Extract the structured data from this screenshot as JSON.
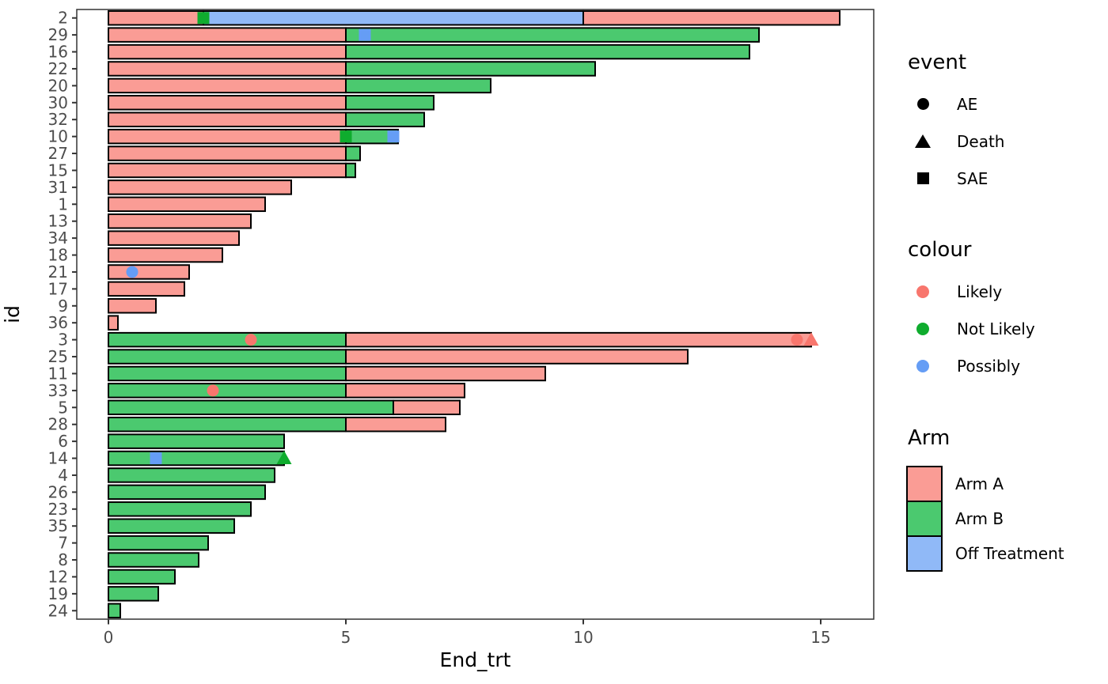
{
  "chart_data": {
    "type": "bar",
    "orientation": "horizontal",
    "xlabel": "End_trt",
    "ylabel": "id",
    "x_ticks": [
      0,
      5,
      10,
      15
    ],
    "xlim": [
      0,
      16.1
    ],
    "grid": false,
    "arm_colors": {
      "Arm A": "#FA9C95",
      "Arm B": "#4BC96F",
      "Off Treatment": "#90B9F7"
    },
    "event_colors": {
      "Likely": "#F8766D",
      "Not Likely": "#0FAC2E",
      "Possibly": "#659DF5"
    },
    "rows": [
      {
        "id": "2",
        "segments": [
          {
            "arm": "Arm A",
            "start": 0,
            "end": 2
          },
          {
            "arm": "Off Treatment",
            "start": 2,
            "end": 10
          },
          {
            "arm": "Arm A",
            "start": 10,
            "end": 15.4
          }
        ],
        "events": [
          {
            "type": "SAE",
            "colour": "Not Likely",
            "x": 2
          }
        ]
      },
      {
        "id": "29",
        "segments": [
          {
            "arm": "Arm A",
            "start": 0,
            "end": 5
          },
          {
            "arm": "Arm B",
            "start": 5,
            "end": 13.7
          }
        ],
        "events": [
          {
            "type": "SAE",
            "colour": "Possibly",
            "x": 5.4
          }
        ]
      },
      {
        "id": "16",
        "segments": [
          {
            "arm": "Arm A",
            "start": 0,
            "end": 5
          },
          {
            "arm": "Arm B",
            "start": 5,
            "end": 13.5
          }
        ],
        "events": []
      },
      {
        "id": "22",
        "segments": [
          {
            "arm": "Arm A",
            "start": 0,
            "end": 5
          },
          {
            "arm": "Arm B",
            "start": 5,
            "end": 10.25
          }
        ],
        "events": []
      },
      {
        "id": "20",
        "segments": [
          {
            "arm": "Arm A",
            "start": 0,
            "end": 5
          },
          {
            "arm": "Arm B",
            "start": 5,
            "end": 8.05
          }
        ],
        "events": []
      },
      {
        "id": "30",
        "segments": [
          {
            "arm": "Arm A",
            "start": 0,
            "end": 5
          },
          {
            "arm": "Arm B",
            "start": 5,
            "end": 6.85
          }
        ],
        "events": []
      },
      {
        "id": "32",
        "segments": [
          {
            "arm": "Arm A",
            "start": 0,
            "end": 5
          },
          {
            "arm": "Arm B",
            "start": 5,
            "end": 6.65
          }
        ],
        "events": []
      },
      {
        "id": "10",
        "segments": [
          {
            "arm": "Arm A",
            "start": 0,
            "end": 5
          },
          {
            "arm": "Arm B",
            "start": 5,
            "end": 6.1
          }
        ],
        "events": [
          {
            "type": "SAE",
            "colour": "Not Likely",
            "x": 5
          },
          {
            "type": "SAE",
            "colour": "Possibly",
            "x": 6
          }
        ]
      },
      {
        "id": "27",
        "segments": [
          {
            "arm": "Arm A",
            "start": 0,
            "end": 5
          },
          {
            "arm": "Arm B",
            "start": 5,
            "end": 5.3
          }
        ],
        "events": []
      },
      {
        "id": "15",
        "segments": [
          {
            "arm": "Arm A",
            "start": 0,
            "end": 5
          },
          {
            "arm": "Arm B",
            "start": 5,
            "end": 5.2
          }
        ],
        "events": []
      },
      {
        "id": "31",
        "segments": [
          {
            "arm": "Arm A",
            "start": 0,
            "end": 3.85
          }
        ],
        "events": []
      },
      {
        "id": "1",
        "segments": [
          {
            "arm": "Arm A",
            "start": 0,
            "end": 3.3
          }
        ],
        "events": []
      },
      {
        "id": "13",
        "segments": [
          {
            "arm": "Arm A",
            "start": 0,
            "end": 3
          }
        ],
        "events": []
      },
      {
        "id": "34",
        "segments": [
          {
            "arm": "Arm A",
            "start": 0,
            "end": 2.75
          }
        ],
        "events": []
      },
      {
        "id": "18",
        "segments": [
          {
            "arm": "Arm A",
            "start": 0,
            "end": 2.4
          }
        ],
        "events": []
      },
      {
        "id": "21",
        "segments": [
          {
            "arm": "Arm A",
            "start": 0,
            "end": 1.7
          }
        ],
        "events": [
          {
            "type": "AE",
            "colour": "Possibly",
            "x": 0.5
          }
        ]
      },
      {
        "id": "17",
        "segments": [
          {
            "arm": "Arm A",
            "start": 0,
            "end": 1.6
          }
        ],
        "events": []
      },
      {
        "id": "9",
        "segments": [
          {
            "arm": "Arm A",
            "start": 0,
            "end": 1
          }
        ],
        "events": []
      },
      {
        "id": "36",
        "segments": [
          {
            "arm": "Arm A",
            "start": 0,
            "end": 0.2
          }
        ],
        "events": []
      },
      {
        "id": "3",
        "segments": [
          {
            "arm": "Arm B",
            "start": 0,
            "end": 5
          },
          {
            "arm": "Arm A",
            "start": 5,
            "end": 14.8
          }
        ],
        "events": [
          {
            "type": "AE",
            "colour": "Likely",
            "x": 3
          },
          {
            "type": "AE",
            "colour": "Likely",
            "x": 14.5
          },
          {
            "type": "Death",
            "colour": "Likely",
            "x": 14.8
          }
        ]
      },
      {
        "id": "25",
        "segments": [
          {
            "arm": "Arm B",
            "start": 0,
            "end": 5
          },
          {
            "arm": "Arm A",
            "start": 5,
            "end": 12.2
          }
        ],
        "events": []
      },
      {
        "id": "11",
        "segments": [
          {
            "arm": "Arm B",
            "start": 0,
            "end": 5
          },
          {
            "arm": "Arm A",
            "start": 5,
            "end": 9.2
          }
        ],
        "events": []
      },
      {
        "id": "33",
        "segments": [
          {
            "arm": "Arm B",
            "start": 0,
            "end": 5
          },
          {
            "arm": "Arm A",
            "start": 5,
            "end": 7.5
          }
        ],
        "events": [
          {
            "type": "AE",
            "colour": "Likely",
            "x": 2.2
          }
        ]
      },
      {
        "id": "5",
        "segments": [
          {
            "arm": "Arm B",
            "start": 0,
            "end": 6
          },
          {
            "arm": "Arm A",
            "start": 6,
            "end": 7.4
          }
        ],
        "events": []
      },
      {
        "id": "28",
        "segments": [
          {
            "arm": "Arm B",
            "start": 0,
            "end": 5
          },
          {
            "arm": "Arm A",
            "start": 5,
            "end": 7.1
          }
        ],
        "events": []
      },
      {
        "id": "6",
        "segments": [
          {
            "arm": "Arm B",
            "start": 0,
            "end": 3.7
          }
        ],
        "events": []
      },
      {
        "id": "14",
        "segments": [
          {
            "arm": "Arm B",
            "start": 0,
            "end": 3.7
          }
        ],
        "events": [
          {
            "type": "SAE",
            "colour": "Possibly",
            "x": 1
          },
          {
            "type": "Death",
            "colour": "Not Likely",
            "x": 3.7
          }
        ]
      },
      {
        "id": "4",
        "segments": [
          {
            "arm": "Arm B",
            "start": 0,
            "end": 3.5
          }
        ],
        "events": []
      },
      {
        "id": "26",
        "segments": [
          {
            "arm": "Arm B",
            "start": 0,
            "end": 3.3
          }
        ],
        "events": []
      },
      {
        "id": "23",
        "segments": [
          {
            "arm": "Arm B",
            "start": 0,
            "end": 3
          }
        ],
        "events": []
      },
      {
        "id": "35",
        "segments": [
          {
            "arm": "Arm B",
            "start": 0,
            "end": 2.65
          }
        ],
        "events": []
      },
      {
        "id": "7",
        "segments": [
          {
            "arm": "Arm B",
            "start": 0,
            "end": 2.1
          }
        ],
        "events": []
      },
      {
        "id": "8",
        "segments": [
          {
            "arm": "Arm B",
            "start": 0,
            "end": 1.9
          }
        ],
        "events": []
      },
      {
        "id": "12",
        "segments": [
          {
            "arm": "Arm B",
            "start": 0,
            "end": 1.4
          }
        ],
        "events": []
      },
      {
        "id": "19",
        "segments": [
          {
            "arm": "Arm B",
            "start": 0,
            "end": 1.05
          }
        ],
        "events": []
      },
      {
        "id": "24",
        "segments": [
          {
            "arm": "Arm B",
            "start": 0,
            "end": 0.25
          }
        ],
        "events": []
      }
    ]
  },
  "legends": {
    "event": {
      "title": "event",
      "items": [
        {
          "label": "AE",
          "shape": "circle"
        },
        {
          "label": "Death",
          "shape": "triangle"
        },
        {
          "label": "SAE",
          "shape": "square"
        }
      ]
    },
    "colour": {
      "title": "colour",
      "items": [
        {
          "label": "Likely",
          "color": "#F8766D"
        },
        {
          "label": "Not Likely",
          "color": "#0FAC2E"
        },
        {
          "label": "Possibly",
          "color": "#659DF5"
        }
      ]
    },
    "arm": {
      "title": "Arm",
      "items": [
        {
          "label": "Arm A",
          "color": "#FA9C95"
        },
        {
          "label": "Arm B",
          "color": "#4BC96F"
        },
        {
          "label": "Off Treatment",
          "color": "#90B9F7"
        }
      ]
    }
  }
}
